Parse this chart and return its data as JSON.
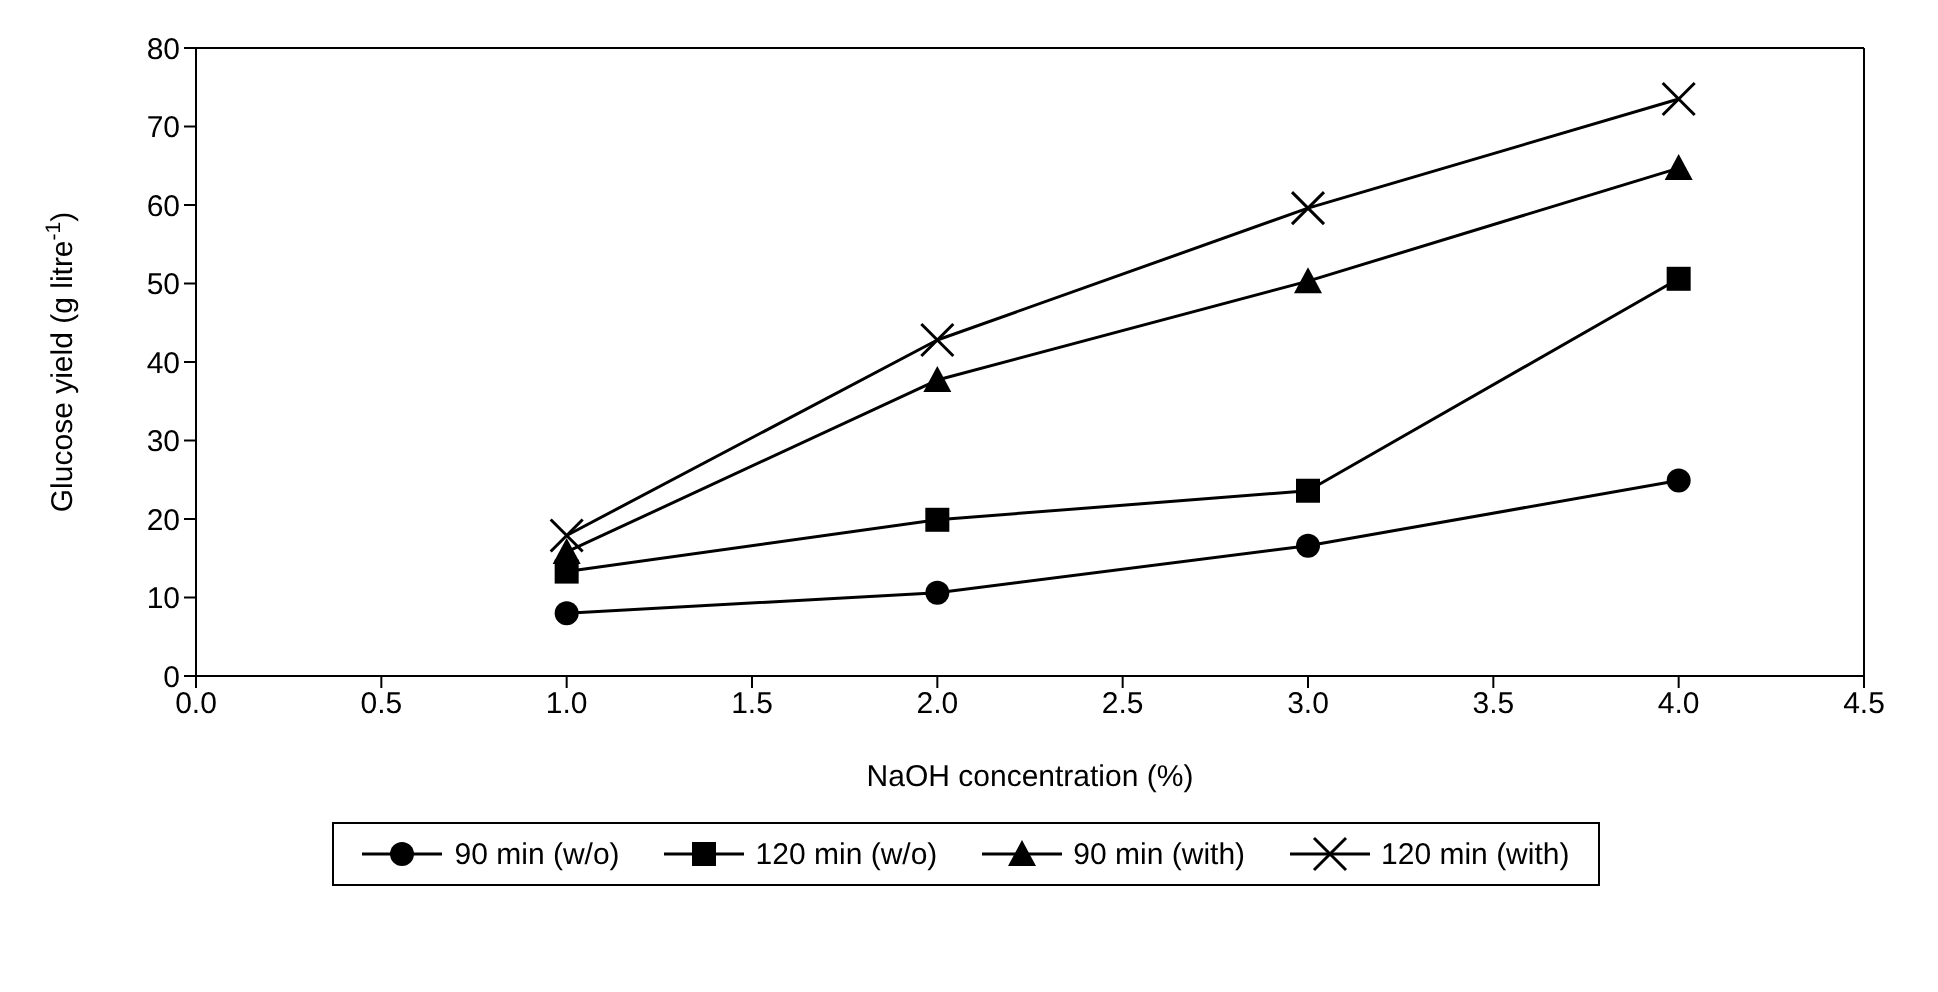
{
  "chart_data": {
    "type": "line",
    "xlabel": "NaOH concentration (%)",
    "ylabel": "Glucose yield (g litre$^{-1}$)",
    "x": [
      1,
      2,
      3,
      4
    ],
    "series": [
      {
        "name": "90 min (w/o)",
        "color": "#000000",
        "marker": "circle",
        "values": [
          8.0,
          10.6,
          16.6,
          24.9
        ]
      },
      {
        "name": "120 min (w/o)",
        "color": "#000000",
        "marker": "square",
        "values": [
          13.3,
          19.9,
          23.6,
          50.6
        ]
      },
      {
        "name": "90 min (with)",
        "color": "#000000",
        "marker": "triangle",
        "values": [
          15.8,
          37.7,
          50.3,
          64.7
        ]
      },
      {
        "name": "120 min (with)",
        "color": "#000000",
        "marker": "cross",
        "values": [
          17.9,
          42.8,
          59.6,
          73.5
        ]
      }
    ],
    "xlim": [
      0,
      4.5
    ],
    "xticks": [
      {
        "value": 0,
        "label": "0.0"
      },
      {
        "value": 0.5,
        "label": "0.5"
      },
      {
        "value": 1,
        "label": "1.0"
      },
      {
        "value": 1.5,
        "label": "1.5"
      },
      {
        "value": 2,
        "label": "2.0"
      },
      {
        "value": 2.5,
        "label": "2.5"
      },
      {
        "value": 3,
        "label": "3.0"
      },
      {
        "value": 3.5,
        "label": "3.5"
      },
      {
        "value": 4,
        "label": "4.0"
      },
      {
        "value": 4.5,
        "label": "4.5"
      }
    ],
    "ylim": [
      0,
      80
    ],
    "yticks": [
      0,
      10,
      20,
      30,
      40,
      50,
      60,
      70,
      80
    ],
    "grid": false,
    "legend": "bottom",
    "line_style": "solid"
  }
}
